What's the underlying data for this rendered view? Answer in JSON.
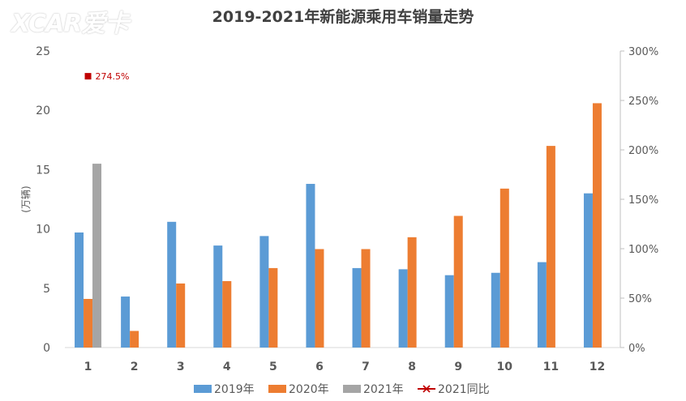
{
  "watermark": "XCAR爱卡",
  "chart_data": {
    "type": "bar",
    "title": "2019-2021年新能源乘用车销量走势",
    "ylabel": "(万辆)",
    "y2label": "",
    "categories": [
      "1",
      "2",
      "3",
      "4",
      "5",
      "6",
      "7",
      "8",
      "9",
      "10",
      "11",
      "12"
    ],
    "ylim": [
      0,
      25
    ],
    "y_ticks": [
      0,
      5,
      10,
      15,
      20,
      25
    ],
    "y2lim": [
      0,
      300
    ],
    "y2_ticks": [
      "0%",
      "50%",
      "100%",
      "150%",
      "200%",
      "250%",
      "300%"
    ],
    "grid": false,
    "legend_position": "bottom",
    "series": [
      {
        "name": "2019年",
        "color": "#5b9bd5",
        "values": [
          9.7,
          4.3,
          10.6,
          8.6,
          9.4,
          13.8,
          6.7,
          6.6,
          6.1,
          6.3,
          7.2,
          13.0
        ]
      },
      {
        "name": "2020年",
        "color": "#ed7d31",
        "values": [
          4.1,
          1.4,
          5.4,
          5.6,
          6.7,
          8.3,
          8.3,
          9.3,
          11.1,
          13.4,
          17.0,
          20.6
        ]
      },
      {
        "name": "2021年",
        "color": "#a5a5a5",
        "values": [
          15.5,
          null,
          null,
          null,
          null,
          null,
          null,
          null,
          null,
          null,
          null,
          null
        ]
      }
    ],
    "line_series": {
      "name": "2021同比",
      "color": "#c00000",
      "values": [
        274.5,
        null,
        null,
        null,
        null,
        null,
        null,
        null,
        null,
        null,
        null,
        null
      ]
    },
    "annotations": [
      {
        "category": "1",
        "text": "274.5%"
      }
    ]
  }
}
